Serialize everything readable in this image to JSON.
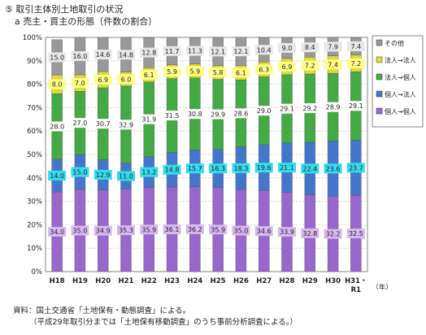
{
  "header": {
    "title": "⑤ 取引主体別土地取引の状況",
    "subtitle": "a 売主・買主の形態（件数の割合）"
  },
  "footer": {
    "source": "資料：国土交通省「土地保有・動態調査」による。",
    "note": "（平成29年取引分までは「土地保有移動調査」のうち事前分析調査による。）"
  },
  "chart_data": {
    "type": "bar",
    "stacked": true,
    "categories": [
      "H18",
      "H19",
      "H20",
      "H21",
      "H22",
      "H23",
      "H24",
      "H25",
      "H26",
      "H27",
      "H28",
      "H29",
      "H30",
      "H31・R1"
    ],
    "xunit": "（年）",
    "ylim": [
      0,
      100
    ],
    "yticks": [
      "0%",
      "10%",
      "20%",
      "30%",
      "40%",
      "50%",
      "60%",
      "70%",
      "80%",
      "90%",
      "100%"
    ],
    "legend_position": "right",
    "series": [
      {
        "name": "個人→個人",
        "color": "#9966cc",
        "label_bg": "#d7b8f0",
        "values": [
          34.0,
          35.0,
          34.9,
          35.3,
          35.9,
          36.1,
          36.2,
          35.9,
          35.0,
          34.6,
          33.9,
          32.8,
          32.2,
          32.5
        ]
      },
      {
        "name": "個人→法人",
        "color": "#4477cc",
        "label_bg": "#33ddee",
        "values": [
          14.0,
          15.0,
          12.9,
          11.0,
          13.2,
          14.8,
          15.7,
          16.3,
          18.3,
          19.6,
          21.1,
          22.4,
          23.6,
          23.7
        ]
      },
      {
        "name": "法人→個人",
        "color": "#44aa44",
        "label_bg": "#ffffff",
        "values": [
          28.0,
          27.0,
          30.7,
          32.9,
          31.9,
          31.5,
          30.8,
          29.9,
          28.6,
          29.0,
          29.1,
          29.2,
          28.9,
          29.1
        ]
      },
      {
        "name": "法人→法人",
        "color": "#dddd33",
        "label_bg": "#ffff88",
        "values": [
          8.0,
          7.0,
          6.9,
          6.0,
          6.1,
          5.9,
          5.9,
          5.8,
          6.1,
          6.3,
          6.9,
          7.2,
          7.4,
          7.2
        ]
      },
      {
        "name": "その他",
        "color": "#999999",
        "label_bg": "#e8e8e8",
        "values": [
          15.0,
          16.0,
          14.6,
          14.8,
          12.8,
          11.7,
          11.3,
          12.1,
          12.1,
          10.4,
          9.0,
          8.4,
          7.9,
          7.4
        ]
      }
    ]
  }
}
